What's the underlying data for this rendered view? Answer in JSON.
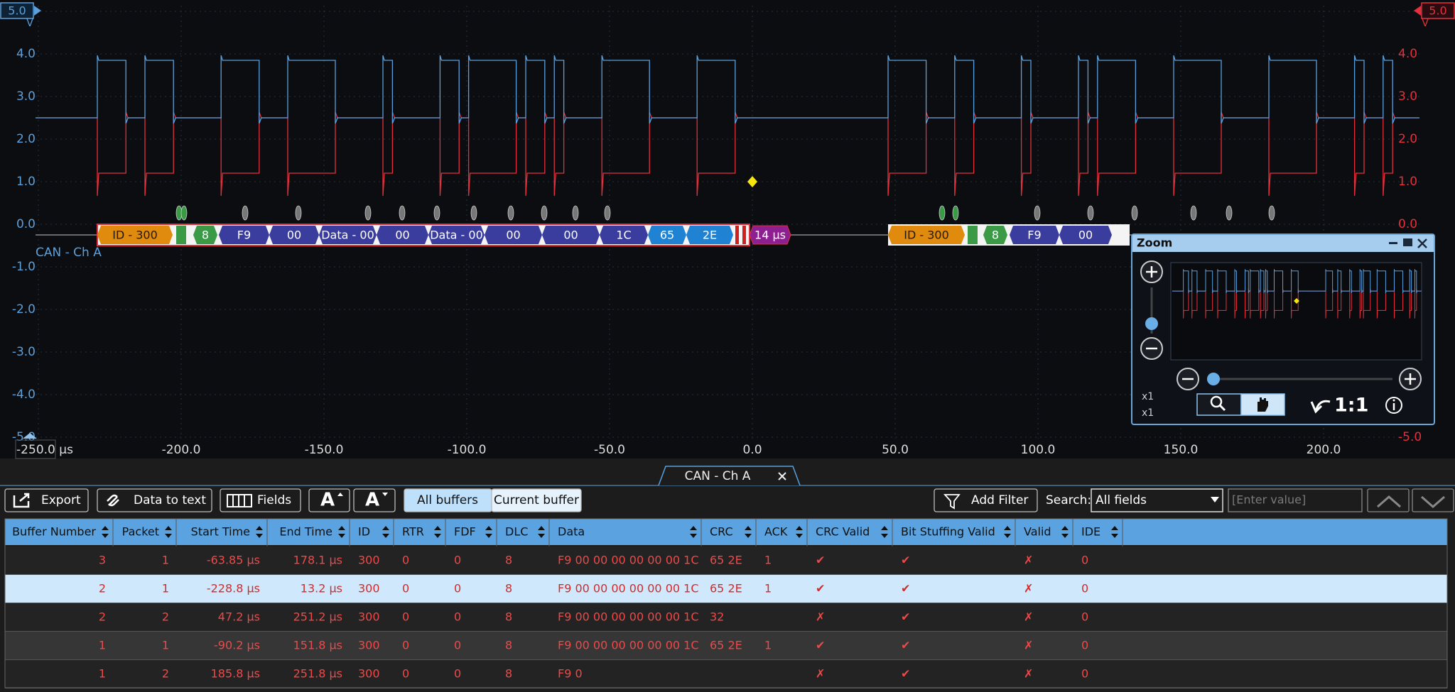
{
  "scope": {
    "left_scale": {
      "top_label": "5.0",
      "unit": "V",
      "color": "#5aa0dc",
      "ticks": [
        "4.0",
        "3.0",
        "2.0",
        "1.0",
        "0.0",
        "-1.0",
        "-2.0",
        "-3.0",
        "-4.0",
        "-5.0"
      ]
    },
    "right_scale": {
      "top_label": "5.0",
      "unit": "V",
      "color": "#e5303c",
      "ticks": [
        "4.0",
        "3.0",
        "2.0",
        "1.0",
        "0.0",
        "-1.0",
        "-2.0",
        "-3.0",
        "-4.0",
        "-5.0"
      ]
    },
    "x_ticks": [
      "-250.0 µs",
      "-200.0",
      "-150.0",
      "-100.0",
      "-50.0",
      "0.0",
      "50.0",
      "100.0",
      "150.0",
      "200.0"
    ],
    "channel_label": "CAN - Ch A",
    "decode": [
      {
        "label": "ID - 300",
        "color": "#e08a0e"
      },
      {
        "label": "8",
        "color": "#3a9a45"
      },
      {
        "label": "F9",
        "color": "#3a3d9e"
      },
      {
        "label": "00",
        "color": "#3a3d9e"
      },
      {
        "label": "Data - 00",
        "color": "#3a3d9e"
      },
      {
        "label": "00",
        "color": "#3a3d9e"
      },
      {
        "label": "Data - 00",
        "color": "#3a3d9e"
      },
      {
        "label": "00",
        "color": "#3a3d9e"
      },
      {
        "label": "00",
        "color": "#3a3d9e"
      },
      {
        "label": "1C",
        "color": "#3a3d9e"
      },
      {
        "label": "65",
        "color": "#1f82d2"
      },
      {
        "label": "2E",
        "color": "#1f82d2"
      },
      {
        "label": "14 µs",
        "color": "#8e1f90"
      },
      {
        "label": "ID - 300",
        "color": "#e08a0e"
      },
      {
        "label": "8",
        "color": "#3a9a45"
      },
      {
        "label": "F9",
        "color": "#3a3d9e"
      },
      {
        "label": "00",
        "color": "#3a3d9e"
      }
    ]
  },
  "zoom": {
    "title": "Zoom",
    "x_scale": "x1",
    "y_scale": "x1",
    "reset": "1:1"
  },
  "tab": "CAN - Ch A",
  "toolbar": {
    "export": "Export",
    "data_to_text": "Data to text",
    "fields": "Fields",
    "font_up": "A",
    "font_down": "A",
    "all_buffers": "All buffers",
    "current_buffer": "Current buffer",
    "add_filter": "Add Filter",
    "search_label": "Search:",
    "search_field": "All fields",
    "search_placeholder": "[Enter value]"
  },
  "table": {
    "selected_row": 1,
    "columns": [
      "Buffer Number",
      "Packet",
      "Start Time",
      "End Time",
      "ID",
      "RTR",
      "FDF",
      "DLC",
      "Data",
      "CRC",
      "ACK",
      "CRC Valid",
      "Bit Stuffing Valid",
      "Valid",
      "IDE"
    ],
    "rows": [
      [
        "3",
        "1",
        "-63.85 µs",
        "178.1 µs",
        "300",
        "0",
        "0",
        "8",
        "F9 00 00 00 00 00 00 1C",
        "65 2E",
        "1",
        "✔",
        "✔",
        "✗",
        "0"
      ],
      [
        "2",
        "1",
        "-228.8 µs",
        "13.2 µs",
        "300",
        "0",
        "0",
        "8",
        "F9 00 00 00 00 00 00 1C",
        "65 2E",
        "1",
        "✔",
        "✔",
        "✗",
        "0"
      ],
      [
        "2",
        "2",
        "47.2 µs",
        "251.2 µs",
        "300",
        "0",
        "0",
        "8",
        "F9 00 00 00 00 00 00 1C",
        "32",
        null,
        "✗",
        "✔",
        "✗",
        "0"
      ],
      [
        "1",
        "1",
        "-90.2 µs",
        "151.8 µs",
        "300",
        "0",
        "0",
        "8",
        "F9 00 00 00 00 00 00 1C",
        "65 2E",
        "1",
        "✔",
        "✔",
        "✗",
        "0"
      ],
      [
        "1",
        "2",
        "185.8 µs",
        "251.8 µs",
        "300",
        "0",
        "0",
        "8",
        "F9 0",
        null,
        null,
        "✗",
        "✔",
        "✗",
        "0"
      ]
    ]
  }
}
